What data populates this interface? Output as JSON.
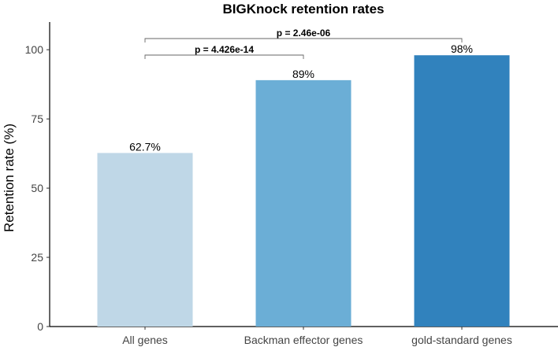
{
  "chart_data": {
    "type": "bar",
    "title": "BIGKnock retention rates",
    "xlabel": "",
    "ylabel": "Retention rate (%)",
    "categories": [
      "All genes",
      "Backman effector genes",
      "gold-standard genes"
    ],
    "values": [
      62.7,
      89,
      98
    ],
    "value_labels": [
      "62.7%",
      "89%",
      "98%"
    ],
    "colors": [
      "#BFD7E7",
      "#6BAED6",
      "#3182BD"
    ],
    "ylim": [
      0,
      110
    ],
    "yticks": [
      0,
      25,
      50,
      75,
      100
    ],
    "grid": false,
    "legend": "none",
    "comparisons": [
      {
        "from": 0,
        "to": 1,
        "label": "p = 4.426e-14",
        "level": 1
      },
      {
        "from": 0,
        "to": 2,
        "label": "p = 2.46e-06",
        "level": 2
      }
    ]
  }
}
